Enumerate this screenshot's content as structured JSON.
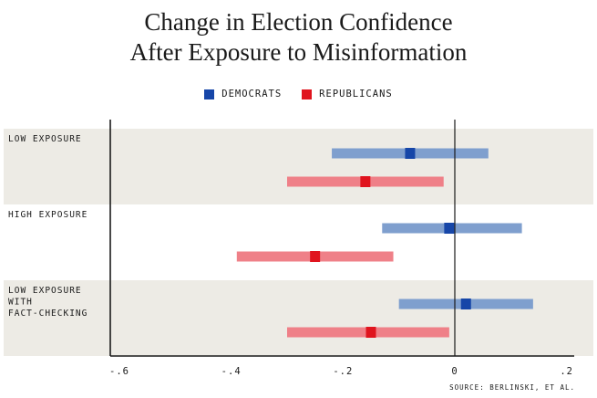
{
  "title_lines": [
    "Change in Election Confidence",
    "After Exposure to Misinformation"
  ],
  "legend": [
    {
      "label": "DEMOCRATS",
      "color": "#1646a8"
    },
    {
      "label": "REPUBLICANS",
      "color": "#e0141e"
    }
  ],
  "source": "SOURCE: BERLINSKI, ET AL.",
  "colors": {
    "band": "#edebe5",
    "dem_interval": "#7f9fce",
    "dem_point": "#1646a8",
    "rep_interval": "#ef8088",
    "rep_point": "#e0141e",
    "axis": "#1a1a1a"
  },
  "chart_data": {
    "type": "dot-and-interval",
    "title": "Change in Election Confidence After Exposure to Misinformation",
    "xlim": [
      -0.6,
      0.2
    ],
    "x_ticks": [
      {
        "value": -0.6,
        "label": "-.6"
      },
      {
        "value": -0.4,
        "label": "-.4"
      },
      {
        "value": -0.2,
        "label": "-.2"
      },
      {
        "value": 0,
        "label": "0"
      },
      {
        "value": 0.2,
        "label": ".2"
      }
    ],
    "groups": [
      {
        "label_lines": [
          "LOW EXPOSURE"
        ],
        "shaded": true,
        "series": [
          {
            "name": "DEMOCRATS",
            "estimate": -0.08,
            "low": -0.22,
            "high": 0.06
          },
          {
            "name": "REPUBLICANS",
            "estimate": -0.16,
            "low": -0.3,
            "high": -0.02
          }
        ]
      },
      {
        "label_lines": [
          "HIGH EXPOSURE"
        ],
        "shaded": false,
        "series": [
          {
            "name": "DEMOCRATS",
            "estimate": -0.01,
            "low": -0.13,
            "high": 0.12
          },
          {
            "name": "REPUBLICANS",
            "estimate": -0.25,
            "low": -0.39,
            "high": -0.11
          }
        ]
      },
      {
        "label_lines": [
          "LOW EXPOSURE",
          "WITH",
          "FACT-CHECKING"
        ],
        "shaded": true,
        "series": [
          {
            "name": "DEMOCRATS",
            "estimate": 0.02,
            "low": -0.1,
            "high": 0.14
          },
          {
            "name": "REPUBLICANS",
            "estimate": -0.15,
            "low": -0.3,
            "high": -0.01
          }
        ]
      }
    ]
  }
}
